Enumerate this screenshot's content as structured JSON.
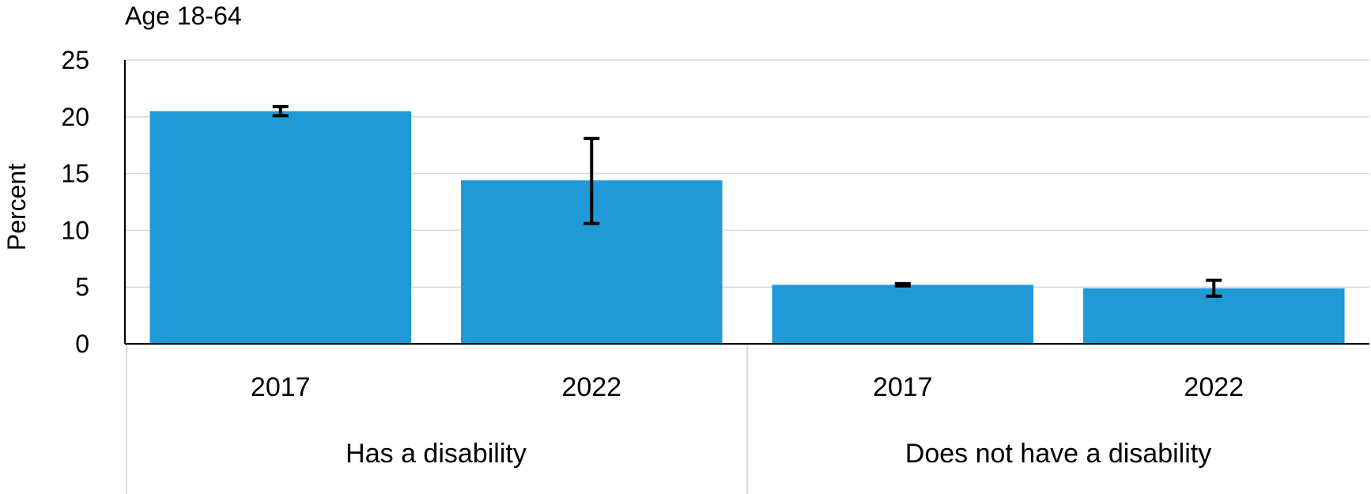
{
  "chart_data": {
    "type": "bar",
    "title": "Age 18-64",
    "ylabel": "Percent",
    "ylim": [
      0,
      25
    ],
    "yticks": [
      0,
      5,
      10,
      15,
      20,
      25
    ],
    "grid": true,
    "bar_color": "#1f9ad6",
    "errorbar_color": "#000000",
    "groups": [
      {
        "label": "Has a disability",
        "categories": [
          "2017",
          "2022"
        ]
      },
      {
        "label": "Does not have a disability",
        "categories": [
          "2017",
          "2022"
        ]
      }
    ],
    "values": [
      20.5,
      14.4,
      5.2,
      4.9
    ],
    "error_low": [
      20.1,
      10.6,
      5.1,
      4.2
    ],
    "error_high": [
      20.9,
      18.1,
      5.3,
      5.6
    ]
  }
}
